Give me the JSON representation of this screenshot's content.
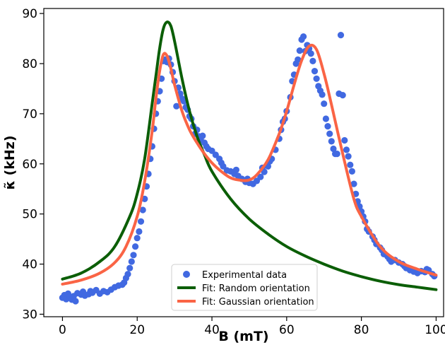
{
  "chart_data": {
    "type": "scatter",
    "xlabel": "B (mT)",
    "ylabel": "κ̃ (kHz)",
    "xlim": [
      -5,
      102
    ],
    "ylim": [
      29.5,
      91
    ],
    "x_ticks": [
      0,
      20,
      40,
      60,
      80,
      100
    ],
    "y_ticks": [
      30,
      40,
      50,
      60,
      70,
      80,
      90
    ],
    "grid": false,
    "legend_position": "bottom-center",
    "series": [
      {
        "name": "Experimental data",
        "kind": "scatter",
        "color": "#4169e1",
        "points": [
          [
            0,
            33.3
          ],
          [
            0.5,
            33.8
          ],
          [
            1,
            33.0
          ],
          [
            1.5,
            34.1
          ],
          [
            2,
            33.5
          ],
          [
            2.5,
            32.9
          ],
          [
            3,
            33.6
          ],
          [
            3.5,
            32.6
          ],
          [
            4,
            34.2
          ],
          [
            5,
            33.9
          ],
          [
            5.5,
            34.5
          ],
          [
            6,
            33.7
          ],
          [
            7,
            34.0
          ],
          [
            7.5,
            34.6
          ],
          [
            8,
            34.3
          ],
          [
            9,
            34.8
          ],
          [
            10,
            34.1
          ],
          [
            11,
            34.6
          ],
          [
            12,
            34.4
          ],
          [
            13,
            34.9
          ],
          [
            14,
            35.4
          ],
          [
            15,
            35.7
          ],
          [
            16,
            35.9
          ],
          [
            16.5,
            36.3
          ],
          [
            17,
            37.2
          ],
          [
            17.5,
            38.0
          ],
          [
            18,
            39.2
          ],
          [
            18.5,
            40.5
          ],
          [
            19,
            41.8
          ],
          [
            19.5,
            43.5
          ],
          [
            20,
            45.2
          ],
          [
            20.5,
            46.5
          ],
          [
            21,
            48.5
          ],
          [
            21.5,
            50.8
          ],
          [
            22,
            53.0
          ],
          [
            22.5,
            55.5
          ],
          [
            23,
            58.0
          ],
          [
            23.5,
            61.0
          ],
          [
            24,
            63.5
          ],
          [
            24.5,
            67.0
          ],
          [
            25,
            70.0
          ],
          [
            25.5,
            72.5
          ],
          [
            26,
            74.5
          ],
          [
            26.5,
            77.0
          ],
          [
            27,
            80.5
          ],
          [
            27.5,
            80.8
          ],
          [
            28,
            80.3
          ],
          [
            28.5,
            81.0
          ],
          [
            29,
            79.8
          ],
          [
            29.5,
            78.3
          ],
          [
            30,
            76.5
          ],
          [
            30.5,
            71.5
          ],
          [
            31,
            75.2
          ],
          [
            31.5,
            74.0
          ],
          [
            32,
            73.0
          ],
          [
            32.5,
            72.5
          ],
          [
            33,
            71.3
          ],
          [
            33.5,
            70.8
          ],
          [
            34,
            69.5
          ],
          [
            34.5,
            69.0
          ],
          [
            35,
            67.5
          ],
          [
            35.5,
            66.0
          ],
          [
            36,
            66.8
          ],
          [
            36.5,
            65.5
          ],
          [
            37,
            64.8
          ],
          [
            37.5,
            65.6
          ],
          [
            38,
            64.2
          ],
          [
            38.5,
            63.5
          ],
          [
            39,
            63.0
          ],
          [
            40,
            62.6
          ],
          [
            41,
            61.8
          ],
          [
            42,
            61.0
          ],
          [
            42.5,
            60.2
          ],
          [
            43,
            59.5
          ],
          [
            44,
            58.7
          ],
          [
            45,
            58.5
          ],
          [
            46,
            58.0
          ],
          [
            46.5,
            58.8
          ],
          [
            47,
            57.6
          ],
          [
            48,
            57.0
          ],
          [
            49,
            56.4
          ],
          [
            49.5,
            57.0
          ],
          [
            50,
            56.2
          ],
          [
            51,
            56.0
          ],
          [
            52,
            56.6
          ],
          [
            53,
            57.4
          ],
          [
            53.5,
            59.2
          ],
          [
            54,
            58.4
          ],
          [
            55,
            59.5
          ],
          [
            55.5,
            60.5
          ],
          [
            56,
            61.0
          ],
          [
            57,
            62.8
          ],
          [
            58,
            65.0
          ],
          [
            58.5,
            66.8
          ],
          [
            59,
            68.4
          ],
          [
            59.5,
            69.0
          ],
          [
            60,
            70.5
          ],
          [
            61,
            73.3
          ],
          [
            61.5,
            76.5
          ],
          [
            62,
            77.8
          ],
          [
            62.5,
            80.0
          ],
          [
            63,
            80.8
          ],
          [
            63.5,
            82.6
          ],
          [
            64,
            84.8
          ],
          [
            64.5,
            85.4
          ],
          [
            65,
            82.5
          ],
          [
            65.5,
            83.7
          ],
          [
            66,
            83.0
          ],
          [
            66.5,
            82.0
          ],
          [
            67,
            80.5
          ],
          [
            67.5,
            78.5
          ],
          [
            68,
            77.0
          ],
          [
            68.5,
            75.5
          ],
          [
            69,
            74.6
          ],
          [
            69.5,
            73.8
          ],
          [
            70,
            72.0
          ],
          [
            70.5,
            69.0
          ],
          [
            71,
            67.5
          ],
          [
            71.5,
            66.0
          ],
          [
            72,
            64.5
          ],
          [
            72.5,
            63.0
          ],
          [
            73,
            62.0
          ],
          [
            73.5,
            62.0
          ],
          [
            74,
            74.0
          ],
          [
            74.5,
            85.7
          ],
          [
            75,
            73.7
          ],
          [
            75.5,
            64.7
          ],
          [
            76,
            62.8
          ],
          [
            76.5,
            61.5
          ],
          [
            77,
            59.8
          ],
          [
            77.5,
            58.5
          ],
          [
            78,
            56.0
          ],
          [
            78.5,
            54.0
          ],
          [
            79,
            52.5
          ],
          [
            79.5,
            51.5
          ],
          [
            80,
            50.5
          ],
          [
            80.5,
            49.5
          ],
          [
            81,
            48.5
          ],
          [
            81.5,
            47.0
          ],
          [
            82,
            46.5
          ],
          [
            83,
            45.5
          ],
          [
            83.5,
            44.8
          ],
          [
            84,
            44.0
          ],
          [
            85,
            43.3
          ],
          [
            85.5,
            42.8
          ],
          [
            86,
            42.0
          ],
          [
            87,
            41.5
          ],
          [
            87.5,
            41.0
          ],
          [
            88,
            40.5
          ],
          [
            89,
            40.8
          ],
          [
            90,
            40.3
          ],
          [
            91,
            40.0
          ],
          [
            91.5,
            39.6
          ],
          [
            92,
            39.2
          ],
          [
            93,
            38.8
          ],
          [
            94,
            38.5
          ],
          [
            95,
            38.2
          ],
          [
            96,
            38.6
          ],
          [
            97,
            38.4
          ],
          [
            97.5,
            39.0
          ],
          [
            98,
            38.8
          ],
          [
            99,
            38.0
          ],
          [
            99.5,
            37.6
          ]
        ]
      },
      {
        "name": "Fit: Random orientation",
        "kind": "line",
        "color": "#0b5e06",
        "x": [
          0,
          5,
          10,
          14,
          18,
          20,
          22,
          24,
          25,
          26,
          27,
          28,
          29,
          30,
          32,
          34,
          36,
          38,
          40,
          45,
          50,
          55,
          60,
          65,
          70,
          75,
          80,
          85,
          90,
          95,
          100
        ],
        "values": [
          37.0,
          38.2,
          40.5,
          43.5,
          49.5,
          54.0,
          61.0,
          72.0,
          77.5,
          83.0,
          87.0,
          88.3,
          87.5,
          84.5,
          77.0,
          70.5,
          65.5,
          61.8,
          58.5,
          53.0,
          49.0,
          46.0,
          43.5,
          41.6,
          40.0,
          38.6,
          37.5,
          36.6,
          35.9,
          35.4,
          34.9
        ]
      },
      {
        "name": "Fit: Gaussian orientation",
        "kind": "line",
        "color": "#fa6445",
        "x": [
          0,
          5,
          10,
          14,
          17,
          20,
          22,
          24,
          25,
          26,
          27,
          28,
          29,
          30,
          32,
          34,
          36,
          38,
          40,
          42,
          45,
          48,
          50,
          52,
          55,
          58,
          60,
          62,
          64,
          66,
          68,
          70,
          72,
          75,
          78,
          80,
          85,
          90,
          95,
          100
        ],
        "values": [
          36.0,
          36.8,
          38.2,
          40.3,
          43.5,
          49.5,
          56.5,
          66.5,
          73.0,
          78.5,
          81.8,
          81.5,
          79.0,
          75.8,
          70.5,
          66.8,
          64.2,
          62.0,
          60.2,
          58.8,
          57.2,
          56.7,
          56.8,
          57.8,
          60.8,
          66.0,
          70.5,
          75.8,
          80.6,
          83.5,
          82.8,
          78.0,
          71.8,
          62.0,
          53.0,
          49.5,
          43.5,
          40.5,
          39.0,
          37.8
        ]
      }
    ]
  }
}
